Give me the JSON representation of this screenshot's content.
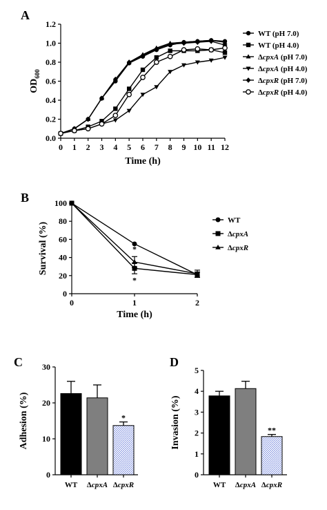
{
  "chart_data": [
    {
      "panel": "A",
      "type": "line",
      "xlabel": "Time (h)",
      "ylabel": "OD",
      "ylabel_sub": "600",
      "xlim": [
        0,
        12
      ],
      "ylim": [
        0.0,
        1.2
      ],
      "xticks": [
        "0",
        "1",
        "2",
        "3",
        "4",
        "5",
        "6",
        "7",
        "8",
        "9",
        "10",
        "11",
        "12"
      ],
      "yticks": [
        "0.0",
        "0.2",
        "0.4",
        "0.6",
        "0.8",
        "1.0",
        "1.2"
      ],
      "legend_position": "right",
      "x": [
        0,
        1,
        2,
        3,
        4,
        5,
        6,
        7,
        8,
        9,
        10,
        11,
        12
      ],
      "series": [
        {
          "name": "WT (pH 7.0)",
          "prefix": "",
          "italic": "",
          "suffix": "WT (pH 7.0)",
          "marker": "circle-filled",
          "values": [
            0.05,
            0.1,
            0.2,
            0.42,
            0.6,
            0.79,
            0.86,
            0.93,
            0.98,
            1.01,
            1.02,
            1.03,
            1.02
          ]
        },
        {
          "name": "WT (pH 4.0)",
          "prefix": "",
          "italic": "",
          "suffix": "WT (pH 4.0)",
          "marker": "square-filled",
          "values": [
            0.05,
            0.08,
            0.12,
            0.18,
            0.31,
            0.52,
            0.72,
            0.85,
            0.92,
            0.92,
            0.92,
            0.93,
            0.9
          ]
        },
        {
          "name": "ΔcpxA (pH 7.0)",
          "prefix": "Δ",
          "italic": "cpxA",
          "suffix": " (pH 7.0)",
          "marker": "triangle-up-filled",
          "values": [
            0.05,
            0.1,
            0.2,
            0.42,
            0.62,
            0.8,
            0.88,
            0.95,
            1.0,
            1.01,
            1.02,
            1.03,
            1.01
          ]
        },
        {
          "name": "ΔcpxA (pH 4.0)",
          "prefix": "Δ",
          "italic": "cpxA",
          "suffix": " (pH 4.0)",
          "marker": "triangle-down-filled",
          "values": [
            0.05,
            0.08,
            0.1,
            0.15,
            0.19,
            0.29,
            0.46,
            0.54,
            0.7,
            0.77,
            0.8,
            0.82,
            0.85
          ]
        },
        {
          "name": "ΔcpxR (pH 7.0)",
          "prefix": "Δ",
          "italic": "cpxR",
          "suffix": " (pH 7.0)",
          "marker": "diamond-filled",
          "values": [
            0.05,
            0.1,
            0.2,
            0.42,
            0.62,
            0.8,
            0.87,
            0.94,
            0.99,
            1.0,
            1.01,
            1.02,
            0.98
          ]
        },
        {
          "name": "ΔcpxR (pH 4.0)",
          "prefix": "Δ",
          "italic": "cpxR",
          "suffix": " (pH 4.0)",
          "marker": "circle-open",
          "values": [
            0.05,
            0.08,
            0.1,
            0.15,
            0.24,
            0.46,
            0.64,
            0.8,
            0.86,
            0.93,
            0.94,
            0.93,
            0.95
          ]
        }
      ]
    },
    {
      "panel": "B",
      "type": "line",
      "xlabel": "Time (h)",
      "ylabel": "Survival (%)",
      "xlim": [
        0,
        2
      ],
      "ylim": [
        0,
        100
      ],
      "xticks": [
        "0",
        "1",
        "2"
      ],
      "yticks": [
        "0",
        "20",
        "40",
        "60",
        "80",
        "100"
      ],
      "legend_position": "right",
      "x": [
        0,
        1,
        2
      ],
      "series": [
        {
          "name": "WT",
          "prefix": "",
          "italic": "",
          "suffix": "WT",
          "marker": "circle-filled",
          "values": [
            100,
            55,
            21
          ],
          "errors": [
            0,
            0,
            3
          ]
        },
        {
          "name": "ΔcpxA",
          "prefix": "Δ",
          "italic": "cpxA",
          "suffix": "",
          "marker": "square-filled",
          "values": [
            100,
            28,
            21
          ],
          "errors": [
            0,
            6,
            3
          ]
        },
        {
          "name": "ΔcpxR",
          "prefix": "Δ",
          "italic": "cpxR",
          "suffix": "",
          "marker": "triangle-up-filled",
          "values": [
            100,
            35,
            22
          ],
          "errors": [
            0,
            6,
            4
          ]
        }
      ],
      "annotations": [
        {
          "text": "*",
          "x": 1,
          "y": 46
        },
        {
          "text": "*",
          "x": 1,
          "y": 12
        }
      ]
    },
    {
      "panel": "C",
      "type": "bar",
      "ylabel": "Adhesion (%)",
      "ylim": [
        0,
        30
      ],
      "yticks": [
        "0",
        "10",
        "20",
        "30"
      ],
      "categories": [
        {
          "prefix": "",
          "italic": "",
          "label": "WT"
        },
        {
          "prefix": "Δ",
          "italic": "cpxA",
          "label": ""
        },
        {
          "prefix": "Δ",
          "italic": "cpxR",
          "label": ""
        }
      ],
      "values": [
        22.6,
        21.4,
        13.7
      ],
      "errors": [
        3.4,
        3.6,
        1.0
      ],
      "fills": [
        "#000000",
        "#7f7f7f",
        "pattern"
      ],
      "significance": [
        "",
        "",
        "*"
      ]
    },
    {
      "panel": "D",
      "type": "bar",
      "ylabel": "Invasion (%)",
      "ylim": [
        0,
        5
      ],
      "yticks": [
        "0",
        "1",
        "2",
        "3",
        "4",
        "5"
      ],
      "categories": [
        {
          "prefix": "",
          "italic": "",
          "label": "WT"
        },
        {
          "prefix": "Δ",
          "italic": "cpxA",
          "label": ""
        },
        {
          "prefix": "Δ",
          "italic": "cpxR",
          "label": ""
        }
      ],
      "values": [
        3.78,
        4.13,
        1.83
      ],
      "errors": [
        0.22,
        0.35,
        0.1
      ],
      "fills": [
        "#000000",
        "#7f7f7f",
        "pattern"
      ],
      "significance": [
        "",
        "",
        "**"
      ]
    }
  ]
}
